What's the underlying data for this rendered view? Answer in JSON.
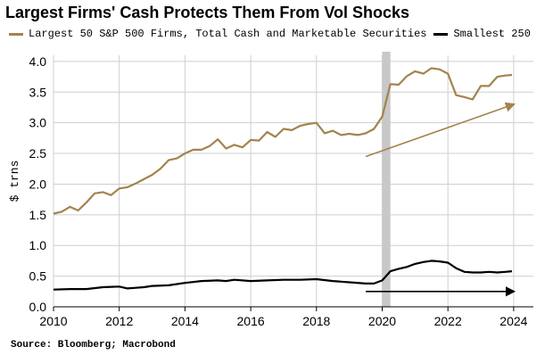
{
  "chart_data": {
    "type": "line",
    "title": "Largest Firms' Cash Protects Them From Vol Shocks",
    "ylabel": "$ trns",
    "xlabel": "",
    "xlim": [
      2010,
      2024.6
    ],
    "ylim": [
      0,
      4.1
    ],
    "xticks": [
      "2010",
      "2012",
      "2014",
      "2016",
      "2018",
      "2020",
      "2022",
      "2024"
    ],
    "yticks": [
      "0.0",
      "0.5",
      "1.0",
      "1.5",
      "2.0",
      "2.5",
      "3.0",
      "3.5",
      "4.0"
    ],
    "grid": true,
    "legend_position": "top",
    "shaded_band": {
      "x0": 2020.0,
      "x1": 2020.25,
      "color": "#c8c8c8"
    },
    "series": [
      {
        "name": "Largest 50 S&P 500 Firms, Total Cash and Marketable Securities",
        "color": "#a3834e",
        "x": [
          2010.0,
          2010.25,
          2010.5,
          2010.75,
          2011.0,
          2011.25,
          2011.5,
          2011.75,
          2012.0,
          2012.25,
          2012.5,
          2012.75,
          2013.0,
          2013.25,
          2013.5,
          2013.75,
          2014.0,
          2014.25,
          2014.5,
          2014.75,
          2015.0,
          2015.25,
          2015.5,
          2015.75,
          2016.0,
          2016.25,
          2016.5,
          2016.75,
          2017.0,
          2017.25,
          2017.5,
          2017.75,
          2018.0,
          2018.25,
          2018.5,
          2018.75,
          2019.0,
          2019.25,
          2019.5,
          2019.75,
          2020.0,
          2020.25,
          2020.5,
          2020.75,
          2021.0,
          2021.25,
          2021.5,
          2021.75,
          2022.0,
          2022.25,
          2022.5,
          2022.75,
          2023.0,
          2023.25,
          2023.5,
          2023.75,
          2023.95
        ],
        "values": [
          1.52,
          1.55,
          1.63,
          1.57,
          1.7,
          1.85,
          1.87,
          1.82,
          1.93,
          1.95,
          2.01,
          2.08,
          2.15,
          2.25,
          2.39,
          2.42,
          2.5,
          2.56,
          2.56,
          2.62,
          2.73,
          2.58,
          2.64,
          2.6,
          2.72,
          2.71,
          2.85,
          2.77,
          2.9,
          2.88,
          2.95,
          2.98,
          3.0,
          2.83,
          2.87,
          2.8,
          2.82,
          2.8,
          2.83,
          2.9,
          3.1,
          3.63,
          3.62,
          3.76,
          3.84,
          3.8,
          3.89,
          3.87,
          3.8,
          3.45,
          3.42,
          3.38,
          3.6,
          3.6,
          3.75,
          3.77,
          3.78
        ]
      },
      {
        "name": "Smallest 250",
        "color": "#000000",
        "x": [
          2010.0,
          2010.5,
          2011.0,
          2011.5,
          2012.0,
          2012.25,
          2012.5,
          2012.75,
          2013.0,
          2013.5,
          2014.0,
          2014.5,
          2015.0,
          2015.25,
          2015.5,
          2016.0,
          2016.5,
          2017.0,
          2017.5,
          2018.0,
          2018.5,
          2019.0,
          2019.5,
          2019.75,
          2020.0,
          2020.25,
          2020.5,
          2020.75,
          2021.0,
          2021.25,
          2021.5,
          2021.75,
          2022.0,
          2022.25,
          2022.5,
          2022.75,
          2023.0,
          2023.25,
          2023.5,
          2023.75,
          2023.95
        ],
        "values": [
          0.28,
          0.29,
          0.29,
          0.32,
          0.33,
          0.3,
          0.31,
          0.32,
          0.34,
          0.35,
          0.39,
          0.42,
          0.43,
          0.42,
          0.44,
          0.42,
          0.43,
          0.44,
          0.44,
          0.45,
          0.42,
          0.4,
          0.38,
          0.38,
          0.43,
          0.58,
          0.62,
          0.65,
          0.7,
          0.73,
          0.75,
          0.74,
          0.72,
          0.63,
          0.57,
          0.56,
          0.56,
          0.57,
          0.56,
          0.57,
          0.58
        ]
      }
    ],
    "annotations": [
      {
        "type": "arrow",
        "color": "#a3834e",
        "x0": 2019.5,
        "y0": 2.45,
        "x1": 2024.0,
        "y1": 3.3
      },
      {
        "type": "arrow",
        "color": "#000000",
        "x0": 2019.5,
        "y0": 0.25,
        "x1": 2024.0,
        "y1": 0.25
      }
    ]
  },
  "footer": {
    "source": "Source: Bloomberg; Macrobond"
  }
}
